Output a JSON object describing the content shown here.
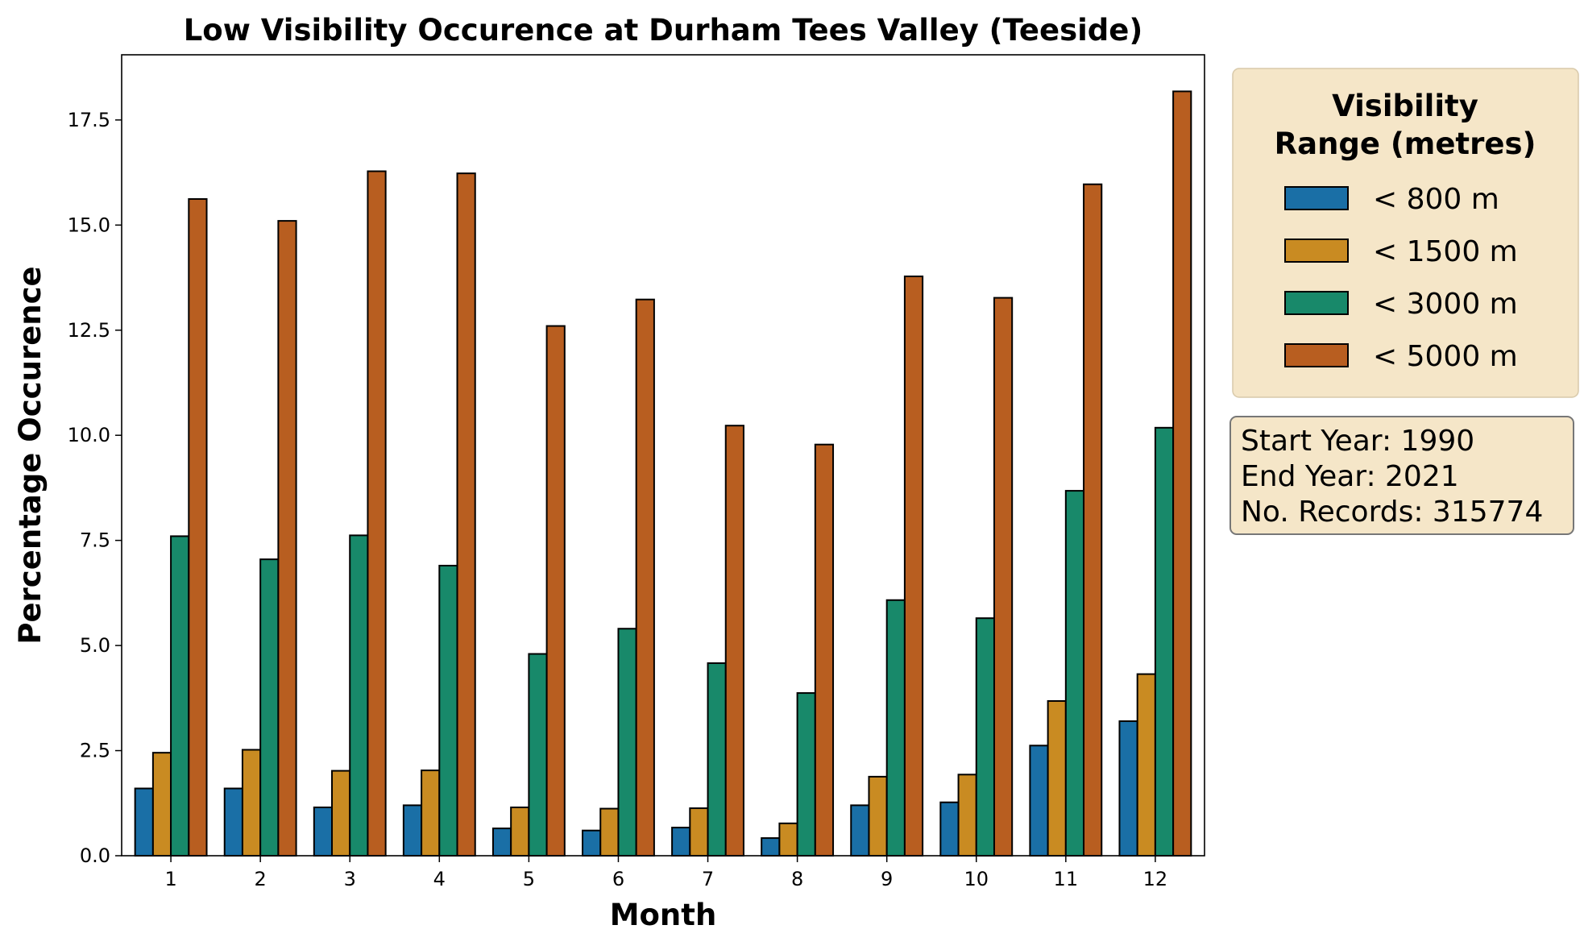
{
  "chart_data": {
    "type": "bar",
    "title": "Low Visibility Occurence at Durham Tees Valley (Teeside)",
    "xlabel": "Month",
    "ylabel": "Percentage Occurence",
    "categories": [
      "1",
      "2",
      "3",
      "4",
      "5",
      "6",
      "7",
      "8",
      "9",
      "10",
      "11",
      "12"
    ],
    "ylim": [
      0,
      19.05
    ],
    "yticks": [
      "0.0",
      "2.5",
      "5.0",
      "7.5",
      "10.0",
      "12.5",
      "15.0",
      "17.5"
    ],
    "grid": false,
    "legend": {
      "title_lines": [
        "Visibility",
        "Range (metres)"
      ],
      "placement": "outside-right-top",
      "background": "#f5e6c8"
    },
    "series": [
      {
        "name": "< 800 m",
        "color": "#1a6fa6",
        "values": [
          1.6,
          1.6,
          1.15,
          1.2,
          0.65,
          0.6,
          0.67,
          0.42,
          1.2,
          1.27,
          2.62,
          3.2
        ]
      },
      {
        "name": "< 1500 m",
        "color": "#c98b22",
        "values": [
          2.45,
          2.52,
          2.02,
          2.03,
          1.15,
          1.12,
          1.13,
          0.77,
          1.88,
          1.93,
          3.68,
          4.32
        ]
      },
      {
        "name": "< 3000 m",
        "color": "#18896a",
        "values": [
          7.6,
          7.05,
          7.62,
          6.9,
          4.8,
          5.4,
          4.58,
          3.87,
          6.08,
          5.65,
          8.68,
          10.18
        ]
      },
      {
        "name": "< 5000 m",
        "color": "#b85e20",
        "values": [
          15.62,
          15.1,
          16.28,
          16.23,
          12.6,
          13.23,
          10.23,
          9.78,
          13.78,
          13.27,
          15.97,
          18.18
        ]
      }
    ],
    "info_box": {
      "lines": [
        "Start Year: 1990",
        "End Year: 2021",
        "No. Records: 315774"
      ],
      "background": "#f5e6c8"
    }
  }
}
